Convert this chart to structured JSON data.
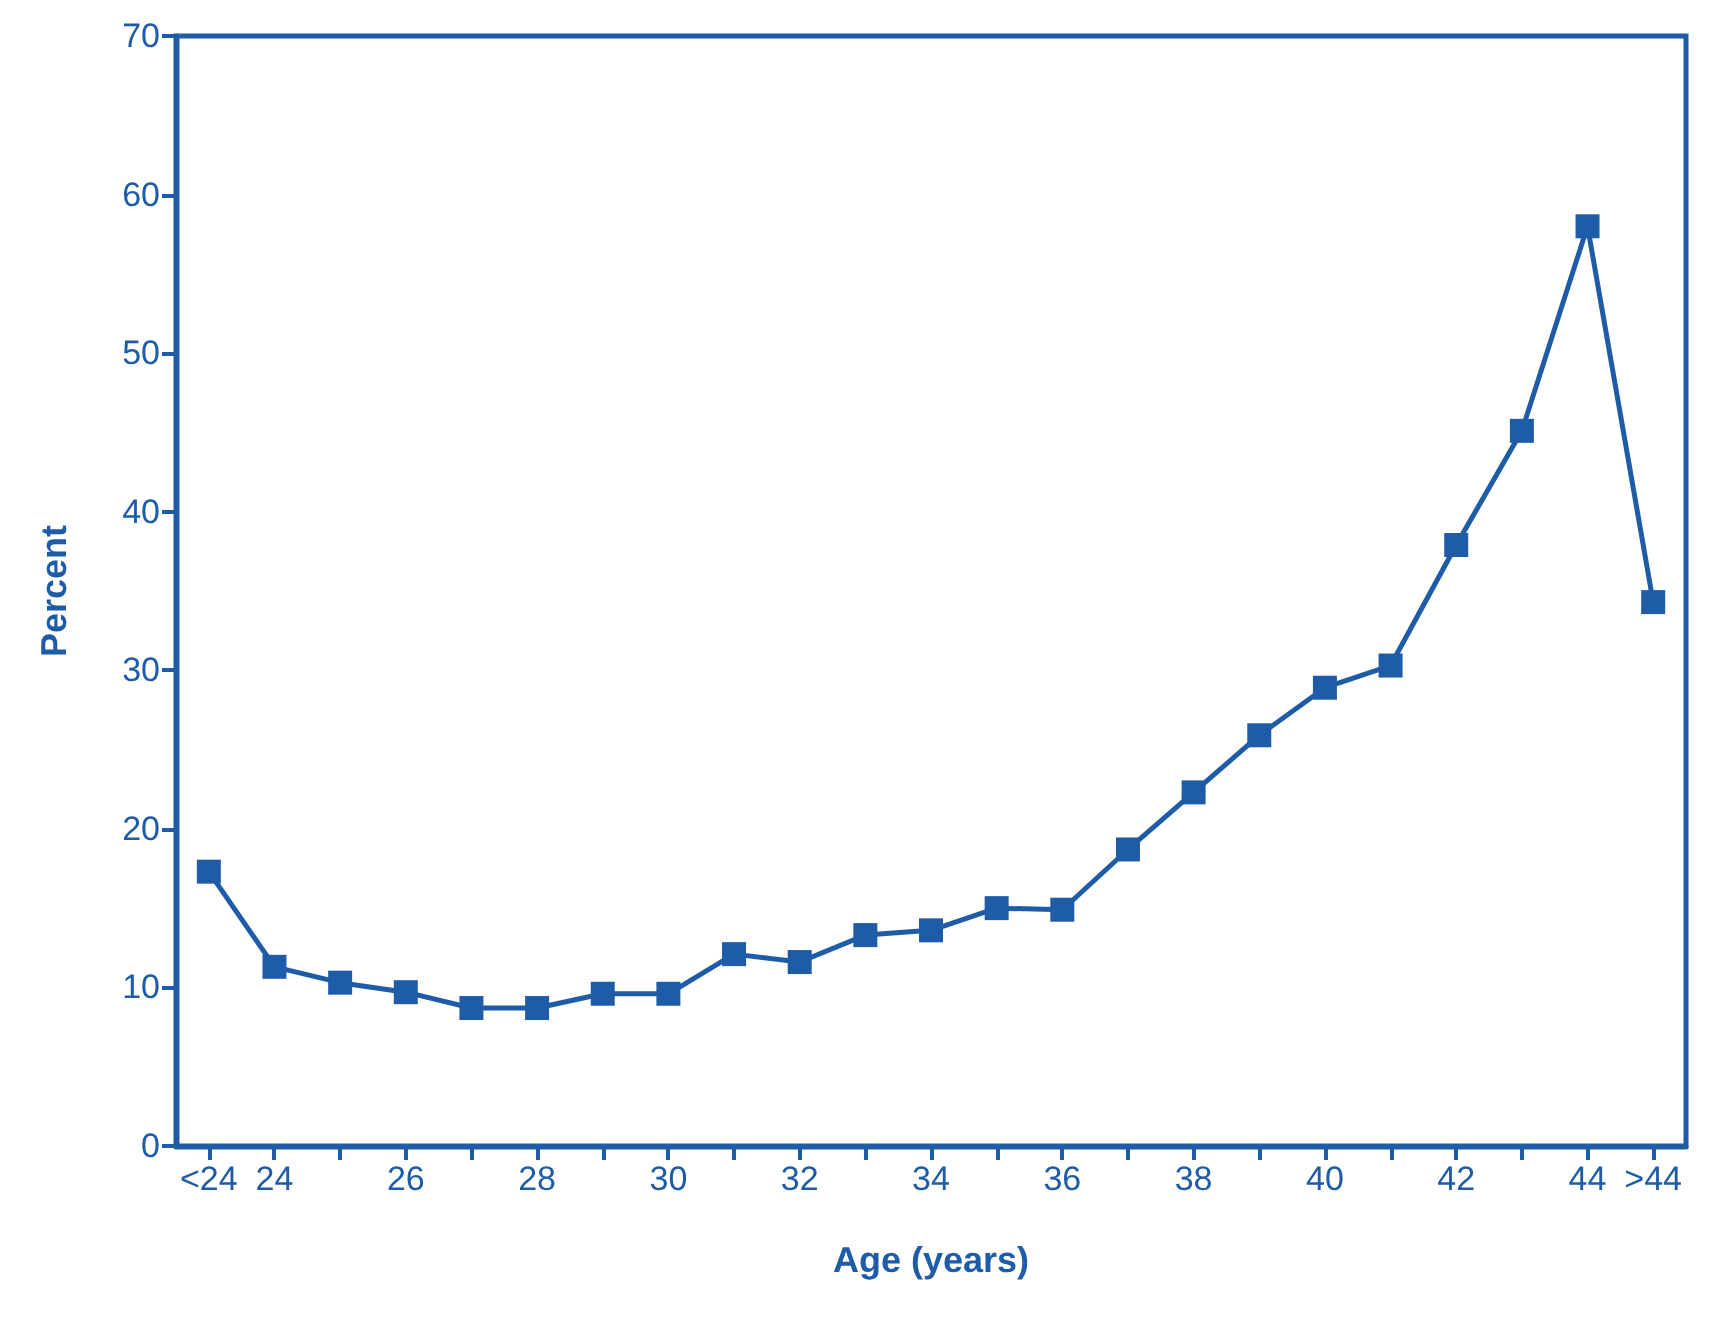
{
  "chart_data": {
    "type": "line",
    "xlabel": "Age (years)",
    "ylabel": "Percent",
    "categories": [
      "<24",
      "24",
      null,
      "26",
      null,
      "28",
      null,
      "30",
      null,
      "32",
      null,
      "34",
      null,
      "36",
      null,
      "38",
      null,
      "40",
      null,
      "42",
      null,
      "44",
      ">44"
    ],
    "series": [
      {
        "color": "#1f5ca8",
        "values": [
          17.3,
          11.3,
          10.3,
          9.7,
          8.7,
          8.7,
          9.6,
          9.6,
          12.1,
          11.6,
          13.3,
          13.6,
          15.0,
          14.9,
          18.7,
          22.3,
          25.9,
          28.9,
          30.3,
          37.9,
          45.1,
          58.0,
          34.3
        ]
      }
    ],
    "ylim": [
      0,
      70
    ],
    "yticks": [
      0,
      10,
      20,
      30,
      40,
      50,
      60,
      70
    ],
    "grid": false,
    "marker": "square",
    "line_style": "solid"
  }
}
